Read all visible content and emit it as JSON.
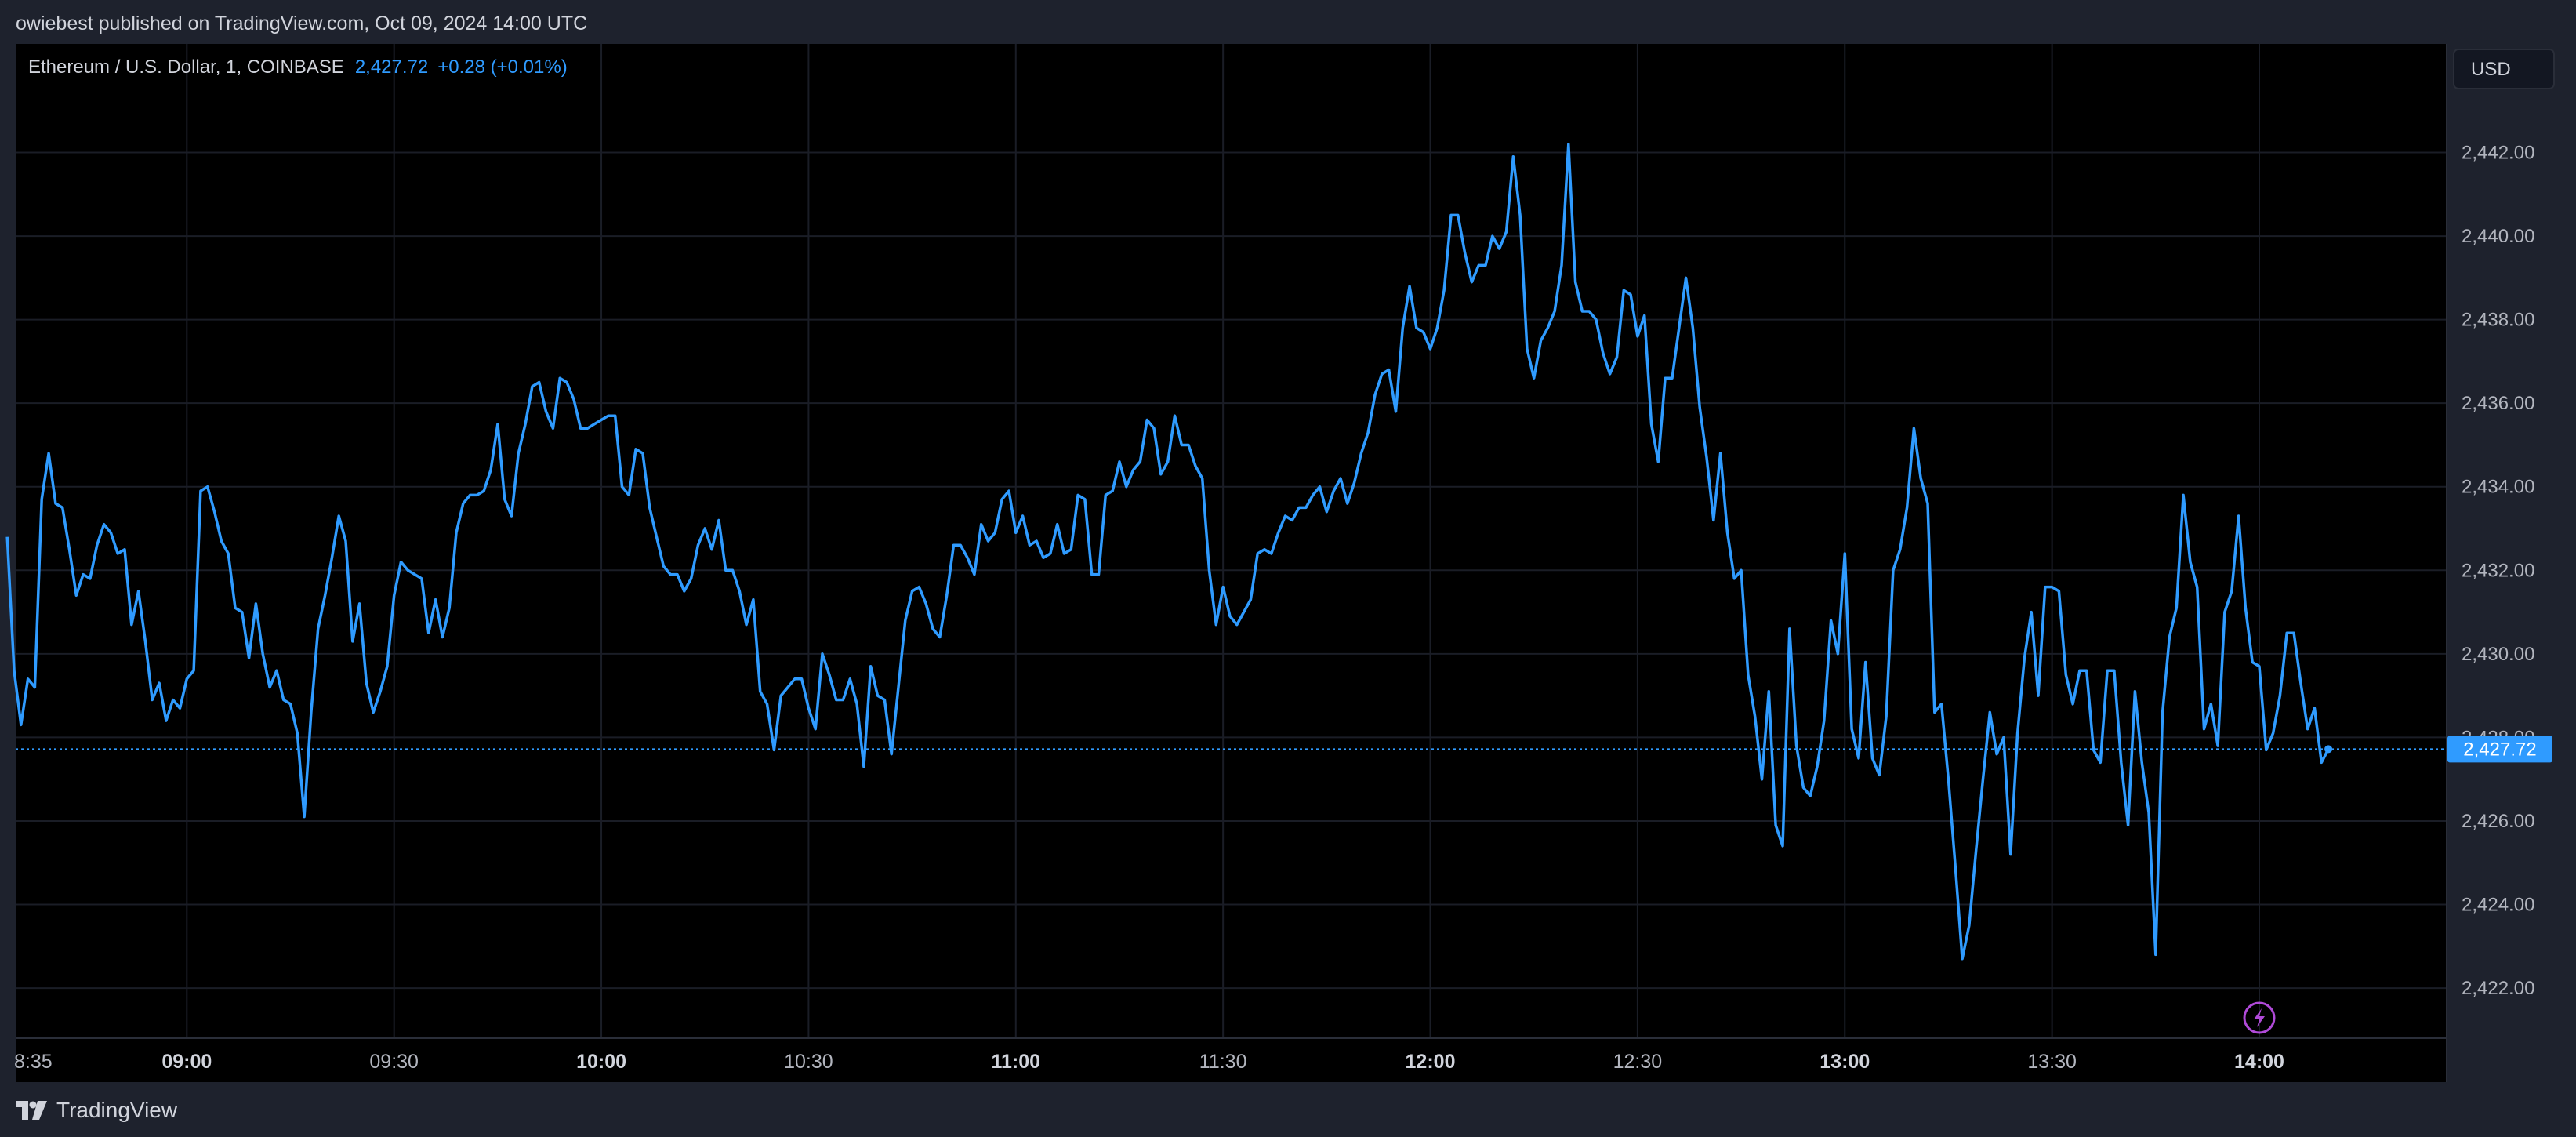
{
  "header": {
    "text": "owiebest published on TradingView.com, Oct 09, 2024 14:00 UTC"
  },
  "legend": {
    "symbol": "Ethereum / U.S. Dollar, 1, COINBASE",
    "price": "2,427.72",
    "change": "+0.28 (+0.01%)"
  },
  "currency_button": "USD",
  "last_price_label": "2,427.72",
  "footer": {
    "brand": "TradingView"
  },
  "colors": {
    "line": "#2f9bff",
    "background": "#000000",
    "panel": "#1e222d",
    "price_tag": "#2f9bff",
    "bolt_icon": "#b04ad8"
  },
  "icons": [
    "tradingview-logo-icon",
    "lightning-icon"
  ],
  "chart_data": {
    "type": "line",
    "title": "Ethereum / U.S. Dollar, 1, COINBASE",
    "xlabel": "",
    "ylabel": "",
    "ylim": [
      2420.8,
      2444.6
    ],
    "y_ticks": [
      "2,422.00",
      "2,424.00",
      "2,426.00",
      "2,428.00",
      "2,430.00",
      "2,432.00",
      "2,434.00",
      "2,436.00",
      "2,438.00",
      "2,440.00",
      "2,442.00"
    ],
    "y_tick_values": [
      2422,
      2424,
      2426,
      2428,
      2430,
      2432,
      2434,
      2436,
      2438,
      2440,
      2442
    ],
    "x_ticks": [
      "8:35",
      "09:00",
      "09:30",
      "10:00",
      "10:30",
      "11:00",
      "11:30",
      "12:00",
      "12:30",
      "13:00",
      "13:30",
      "14:00"
    ],
    "x_tick_minutes": [
      515,
      540,
      570,
      600,
      630,
      660,
      690,
      720,
      750,
      780,
      810,
      840
    ],
    "x_tick_major": [
      false,
      true,
      false,
      true,
      false,
      true,
      false,
      true,
      false,
      true,
      false,
      true
    ],
    "grid": true,
    "last_price": 2427.72,
    "series": [
      {
        "name": "Ethereum / U.S. Dollar",
        "x_start_minute": 514,
        "step_minutes": 1,
        "values": [
          2432.8,
          2429.6,
          2428.3,
          2429.4,
          2429.2,
          2433.7,
          2434.8,
          2433.6,
          2433.5,
          2432.5,
          2431.4,
          2431.9,
          2431.8,
          2432.6,
          2433.1,
          2432.9,
          2432.4,
          2432.5,
          2430.7,
          2431.5,
          2430.3,
          2428.9,
          2429.3,
          2428.4,
          2428.9,
          2428.7,
          2429.4,
          2429.6,
          2433.9,
          2434.0,
          2433.4,
          2432.7,
          2432.4,
          2431.1,
          2431.0,
          2429.9,
          2431.2,
          2430.0,
          2429.2,
          2429.6,
          2428.9,
          2428.8,
          2428.1,
          2426.1,
          2428.6,
          2430.6,
          2431.4,
          2432.3,
          2433.3,
          2432.7,
          2430.3,
          2431.2,
          2429.3,
          2428.6,
          2429.1,
          2429.7,
          2431.4,
          2432.2,
          2432.0,
          2431.9,
          2431.8,
          2430.5,
          2431.3,
          2430.4,
          2431.1,
          2432.9,
          2433.6,
          2433.8,
          2433.8,
          2433.9,
          2434.4,
          2435.5,
          2433.7,
          2433.3,
          2434.8,
          2435.5,
          2436.4,
          2436.5,
          2435.8,
          2435.4,
          2436.6,
          2436.5,
          2436.1,
          2435.4,
          2435.4,
          2435.5,
          2435.6,
          2435.7,
          2435.7,
          2434.0,
          2433.8,
          2434.9,
          2434.8,
          2433.5,
          2432.8,
          2432.1,
          2431.9,
          2431.9,
          2431.5,
          2431.8,
          2432.6,
          2433.0,
          2432.5,
          2433.2,
          2432.0,
          2432.0,
          2431.5,
          2430.7,
          2431.3,
          2429.1,
          2428.8,
          2427.7,
          2429.0,
          2429.2,
          2429.4,
          2429.4,
          2428.7,
          2428.2,
          2430.0,
          2429.5,
          2428.9,
          2428.9,
          2429.4,
          2428.8,
          2427.3,
          2429.7,
          2429.0,
          2428.9,
          2427.6,
          2429.2,
          2430.8,
          2431.5,
          2431.6,
          2431.2,
          2430.6,
          2430.4,
          2431.4,
          2432.6,
          2432.6,
          2432.3,
          2431.9,
          2433.1,
          2432.7,
          2432.9,
          2433.7,
          2433.9,
          2432.9,
          2433.3,
          2432.6,
          2432.7,
          2432.3,
          2432.4,
          2433.1,
          2432.4,
          2432.5,
          2433.8,
          2433.7,
          2431.9,
          2431.9,
          2433.8,
          2433.9,
          2434.6,
          2434.0,
          2434.4,
          2434.6,
          2435.6,
          2435.4,
          2434.3,
          2434.6,
          2435.7,
          2435.0,
          2435.0,
          2434.5,
          2434.2,
          2432.0,
          2430.7,
          2431.6,
          2430.9,
          2430.7,
          2431.0,
          2431.3,
          2432.4,
          2432.5,
          2432.4,
          2432.9,
          2433.3,
          2433.2,
          2433.5,
          2433.5,
          2433.8,
          2434.0,
          2433.4,
          2433.9,
          2434.2,
          2433.6,
          2434.1,
          2434.8,
          2435.3,
          2436.2,
          2436.7,
          2436.8,
          2435.8,
          2437.8,
          2438.8,
          2437.8,
          2437.7,
          2437.3,
          2437.8,
          2438.7,
          2440.5,
          2440.5,
          2439.6,
          2438.9,
          2439.3,
          2439.3,
          2440.0,
          2439.7,
          2440.1,
          2441.9,
          2440.5,
          2437.3,
          2436.6,
          2437.5,
          2437.8,
          2438.2,
          2439.3,
          2442.2,
          2438.9,
          2438.2,
          2438.2,
          2438.0,
          2437.2,
          2436.7,
          2437.1,
          2438.7,
          2438.6,
          2437.6,
          2438.1,
          2435.5,
          2434.6,
          2436.6,
          2436.6,
          2437.8,
          2439.0,
          2437.8,
          2435.9,
          2434.7,
          2433.2,
          2434.8,
          2432.9,
          2431.8,
          2432.0,
          2429.5,
          2428.5,
          2427.0,
          2429.1,
          2425.9,
          2425.4,
          2430.6,
          2427.8,
          2426.8,
          2426.6,
          2427.3,
          2428.4,
          2430.8,
          2430.0,
          2432.4,
          2428.2,
          2427.5,
          2429.8,
          2427.5,
          2427.1,
          2428.5,
          2432.0,
          2432.5,
          2433.5,
          2435.4,
          2434.2,
          2433.6,
          2428.6,
          2428.8,
          2427.0,
          2424.9,
          2422.7,
          2423.5,
          2425.3,
          2427.0,
          2428.6,
          2427.6,
          2428.0,
          2425.2,
          2428.1,
          2429.9,
          2431.0,
          2429.0,
          2431.6,
          2431.6,
          2431.5,
          2429.5,
          2428.8,
          2429.6,
          2429.6,
          2427.7,
          2427.4,
          2429.6,
          2429.6,
          2427.4,
          2425.9,
          2429.1,
          2427.4,
          2426.2,
          2422.8,
          2428.6,
          2430.4,
          2431.1,
          2433.8,
          2432.2,
          2431.6,
          2428.2,
          2428.8,
          2427.8,
          2431.0,
          2431.5,
          2433.3,
          2431.1,
          2429.8,
          2429.7,
          2427.7,
          2428.1,
          2429.0,
          2430.5,
          2430.5,
          2429.3,
          2428.2,
          2428.7,
          2427.4,
          2427.72
        ]
      }
    ]
  }
}
